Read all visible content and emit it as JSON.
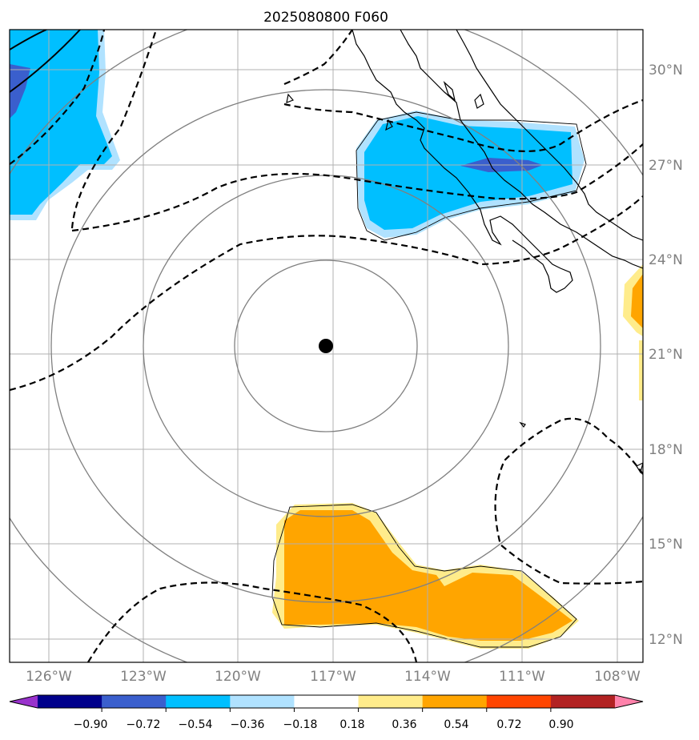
{
  "title": "2025080800 F060",
  "longitude_labels": [
    "126°W",
    "123°W",
    "120°W",
    "117°W",
    "114°W",
    "111°W",
    "108°W"
  ],
  "latitude_labels": [
    "30°N",
    "27°N",
    "24°N",
    "21°N",
    "18°N",
    "15°N",
    "12°N"
  ],
  "colorbar": {
    "colors": [
      "#9932cc",
      "#00008b",
      "#3a5fcd",
      "#00bfff",
      "#b0e2ff",
      "#ffffff",
      "#ffec8b",
      "#ffa500",
      "#ff4500",
      "#b22222",
      "#ff82ab"
    ],
    "tick_labels": [
      "−0.90",
      "−0.72",
      "−0.54",
      "−0.36",
      "−0.18",
      "0.18",
      "0.36",
      "0.54",
      "0.72",
      "0.90"
    ],
    "extend": "both"
  },
  "center_marker": {
    "lon": -117.2,
    "lat": 21.3,
    "color": "#000000"
  },
  "range_rings": {
    "count": 4,
    "color": "#808080"
  },
  "contours": {
    "style": "dashed",
    "color": "#000000"
  }
}
